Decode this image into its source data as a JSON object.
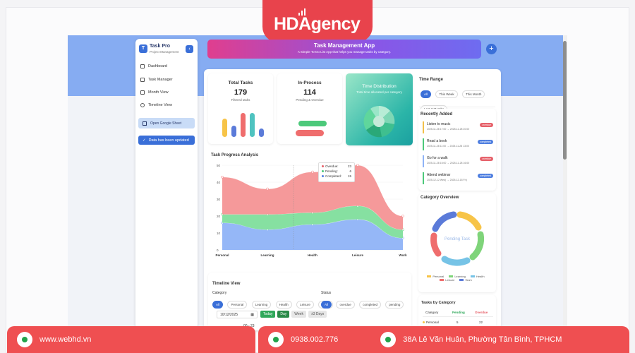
{
  "brand": {
    "logo_text": "HDAgency"
  },
  "sidebar": {
    "logo_letter": "T",
    "title": "Task Pro",
    "subtitle": "Project Management",
    "collapse_icon": "chevron-left-icon",
    "items": [
      {
        "label": "Dashboard",
        "icon": "home-icon"
      },
      {
        "label": "Task Manager",
        "icon": "sliders-icon"
      },
      {
        "label": "Month View",
        "icon": "calendar-icon"
      },
      {
        "label": "Timeline View",
        "icon": "clock-icon"
      }
    ],
    "sheet_button": "Open Google Sheet",
    "updated_button": "Data has been updated"
  },
  "header": {
    "title": "Task Management App",
    "subtitle": "A Simple To-Do List App that helps you manage tasks by category.",
    "add_icon": "+"
  },
  "stats": {
    "total": {
      "title": "Total Tasks",
      "value": "179",
      "sub": "Filtered tasks"
    },
    "inprocess": {
      "title": "In-Process",
      "value": "114",
      "sub": "Pending & Overdue"
    },
    "time": {
      "title": "Time Distribution",
      "sub": "Total time allocated per category"
    }
  },
  "progress": {
    "title": "Task Progress Analysis",
    "tooltip": [
      {
        "label": "Overdue:",
        "value": "23",
        "color": "#e6616a"
      },
      {
        "label": "Pending:",
        "value": "6",
        "color": "#4cc97a"
      },
      {
        "label": "Completed:",
        "value": "15",
        "color": "#4f7fe0"
      }
    ]
  },
  "chart_data": {
    "type": "area",
    "title": "Task Progress Analysis",
    "categories": [
      "Personal",
      "Learning",
      "Health",
      "Leisure",
      "Work"
    ],
    "ylim": [
      0,
      50
    ],
    "yticks": [
      "0",
      "10",
      "20",
      "30",
      "40",
      "50"
    ],
    "series": [
      {
        "name": "Completed",
        "values": [
          16,
          12,
          15,
          18,
          7
        ],
        "color": "#8fb3f7"
      },
      {
        "name": "Pending",
        "values": [
          5,
          9,
          7,
          8,
          5
        ],
        "color": "#7fde9c"
      },
      {
        "name": "Overdue",
        "values": [
          22,
          15,
          24,
          24,
          8
        ],
        "color": "#f49495"
      }
    ]
  },
  "timeline": {
    "title": "Timeline View",
    "category_label": "Category",
    "categories": [
      "All",
      "Personal",
      "Learning",
      "Health",
      "Leisure",
      "Work"
    ],
    "status_label": "Status",
    "statuses": [
      "All",
      "overdue",
      "completed",
      "pending"
    ],
    "date": "10/12/2025",
    "buttons": [
      "Today",
      "Day",
      "Week",
      "±3 Days"
    ],
    "time_partial": "00 - 23"
  },
  "time_range": {
    "title": "Time Range",
    "options": [
      "All",
      "This Week",
      "This Month",
      "Last 3 Months"
    ]
  },
  "recent": {
    "title": "Recently Added",
    "items": [
      {
        "name": "Listen to music",
        "dates": "2025-11-28 17:00 → 2025-11-28 20:00",
        "badge": "overdue",
        "color": "#f2c04a",
        "badge_color": "#e6616a"
      },
      {
        "name": "Read a book",
        "dates": "2025-11-28 11:00 → 2025-11-28 13:00",
        "badge": "completed",
        "color": "#4cc97a",
        "badge_color": "#4f7fe0"
      },
      {
        "name": "Go for a walk",
        "dates": "2025-11-28 15:00 → 2025-11-28 16:00",
        "badge": "overdue",
        "color": "#8fb3f7",
        "badge_color": "#e6616a"
      },
      {
        "name": "Attend webinar",
        "dates": "2025-12-12 Wed) → 2025-12-18 Fri)",
        "badge": "completed",
        "color": "#4cc97a",
        "badge_color": "#4f7fe0"
      }
    ]
  },
  "category_overview": {
    "title": "Category Overview",
    "center": "Pending Task",
    "legend": [
      "Personal",
      "Learning",
      "Health",
      "Leisure",
      "Work"
    ],
    "colors": [
      "#f7c448",
      "#7fd47a",
      "#76c3e6",
      "#ef6d6d",
      "#5b7bd9"
    ]
  },
  "tasks_by_category": {
    "title": "Tasks by Category",
    "headers": [
      "Category",
      "Pending",
      "Overdue"
    ],
    "row": {
      "name": "Personal",
      "pending": "5",
      "overdue": "22"
    }
  },
  "footer": {
    "website": "www.webhd.vn",
    "phone": "0938.002.776",
    "address": "38A Lê Văn Huân, Phường Tân Bình, TPHCM"
  }
}
